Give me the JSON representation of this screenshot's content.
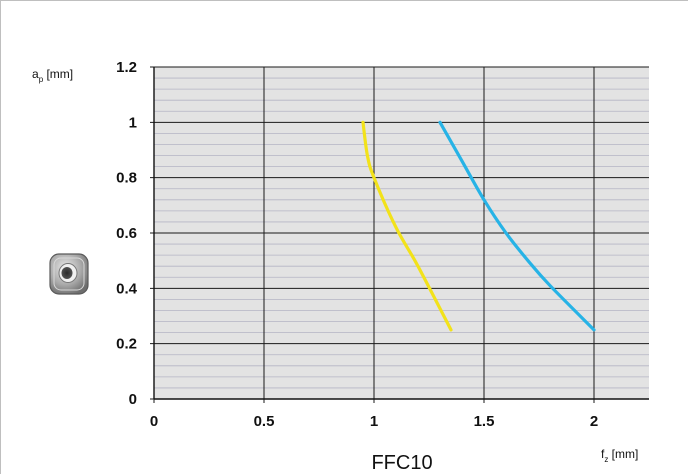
{
  "chart_data": {
    "type": "line",
    "title": "FFC10",
    "xlabel": {
      "main": "f",
      "sub": "z",
      "unit": " [mm]"
    },
    "ylabel": {
      "main": "a",
      "sub": "p",
      "unit": " [mm]"
    },
    "xlim": [
      0,
      2.25
    ],
    "ylim": [
      0,
      1.2
    ],
    "xticks": [
      0,
      0.5,
      1,
      1.5,
      2
    ],
    "xtick_labels": [
      "0",
      "0.5",
      "1",
      "1.5",
      "2"
    ],
    "yticks": [
      0,
      0.2,
      0.4,
      0.6,
      0.8,
      1,
      1.2
    ],
    "ytick_labels": [
      "0",
      "0.2",
      "0.4",
      "0.6",
      "0.8",
      "1",
      "1.2"
    ],
    "grid": true,
    "minor_y_step": 0.04,
    "series": [
      {
        "color": "#f2e21a",
        "points": [
          [
            0.95,
            1.0
          ],
          [
            0.97,
            0.88
          ],
          [
            1.0,
            0.8
          ],
          [
            1.1,
            0.62
          ],
          [
            1.2,
            0.48
          ],
          [
            1.35,
            0.25
          ]
        ]
      },
      {
        "color": "#27b3e6",
        "points": [
          [
            1.3,
            1.0
          ],
          [
            1.4,
            0.86
          ],
          [
            1.5,
            0.72
          ],
          [
            1.6,
            0.6
          ],
          [
            1.7,
            0.5
          ],
          [
            1.8,
            0.41
          ],
          [
            2.0,
            0.25
          ]
        ]
      }
    ],
    "colors": {
      "plot_bg": "#e3e3e3",
      "major_grid": "#1a1a1a",
      "minor_grid": "#b4b4c4"
    }
  },
  "decor": {
    "insert_icon": "cutting-insert-icon"
  }
}
